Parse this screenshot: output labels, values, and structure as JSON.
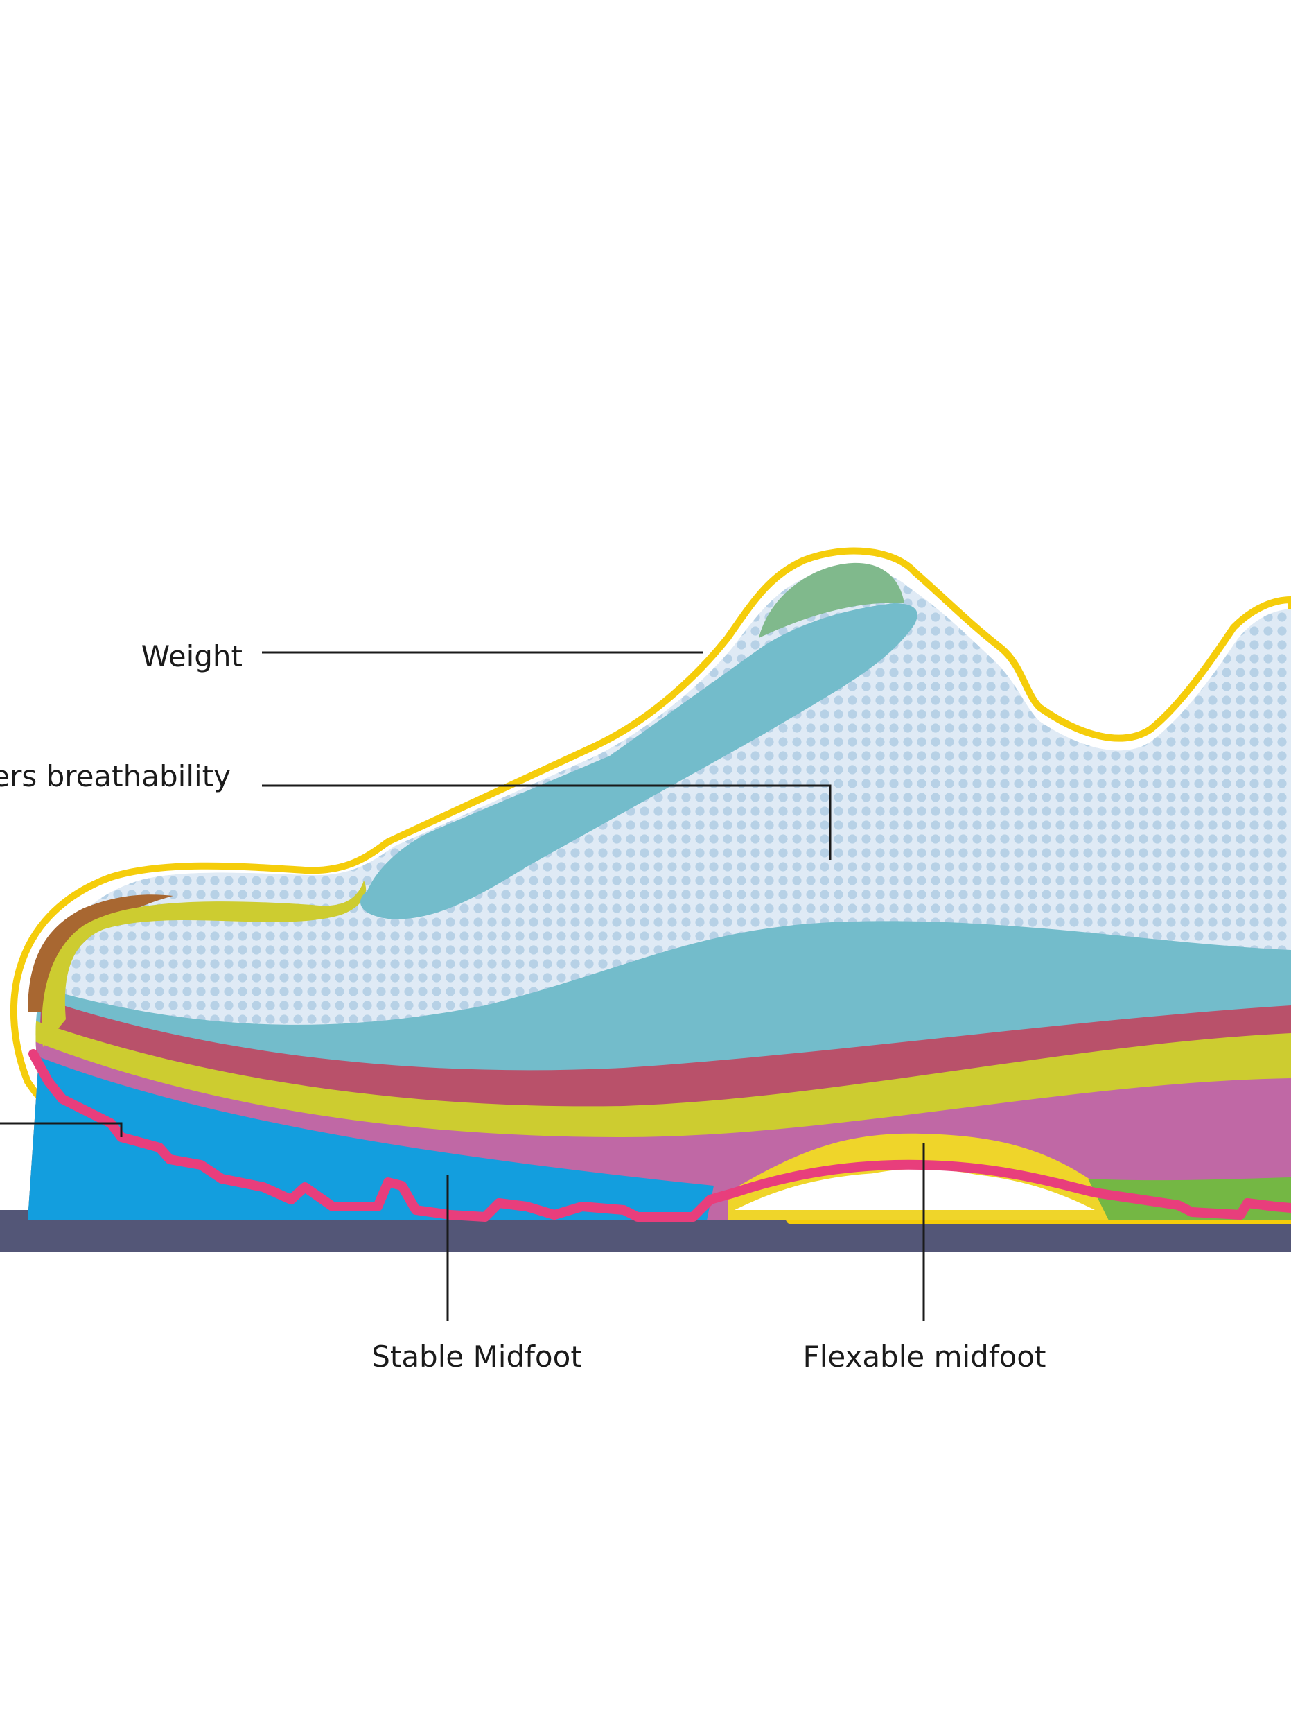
{
  "labels": {
    "weight": "Weight",
    "breathability": "ers breathability",
    "stable_midfoot": "Stable Midfoot",
    "flexable_midfoot": "Flexable midfoot"
  },
  "colors": {
    "ground": "#535677",
    "outline_yellow": "#f5cd0b",
    "outsole_pink": "#e83e7c",
    "outsole_blue": "#139ede",
    "midsole_magenta": "#c068a5",
    "midsole_lime": "#cdcc30",
    "midsole_red": "#b9516a",
    "insole_teal": "#73bccb",
    "upper_mesh": "#dfeaf5",
    "mesh_dot": "#b7d1e6",
    "toe_brown": "#a86731",
    "collar_green": "#80b98c",
    "arch_yellow": "#efd52a",
    "heel_green": "#74b744",
    "leader_line": "#1a1a1a"
  },
  "icons": {
    "shoe": "running-shoe-illustration"
  }
}
